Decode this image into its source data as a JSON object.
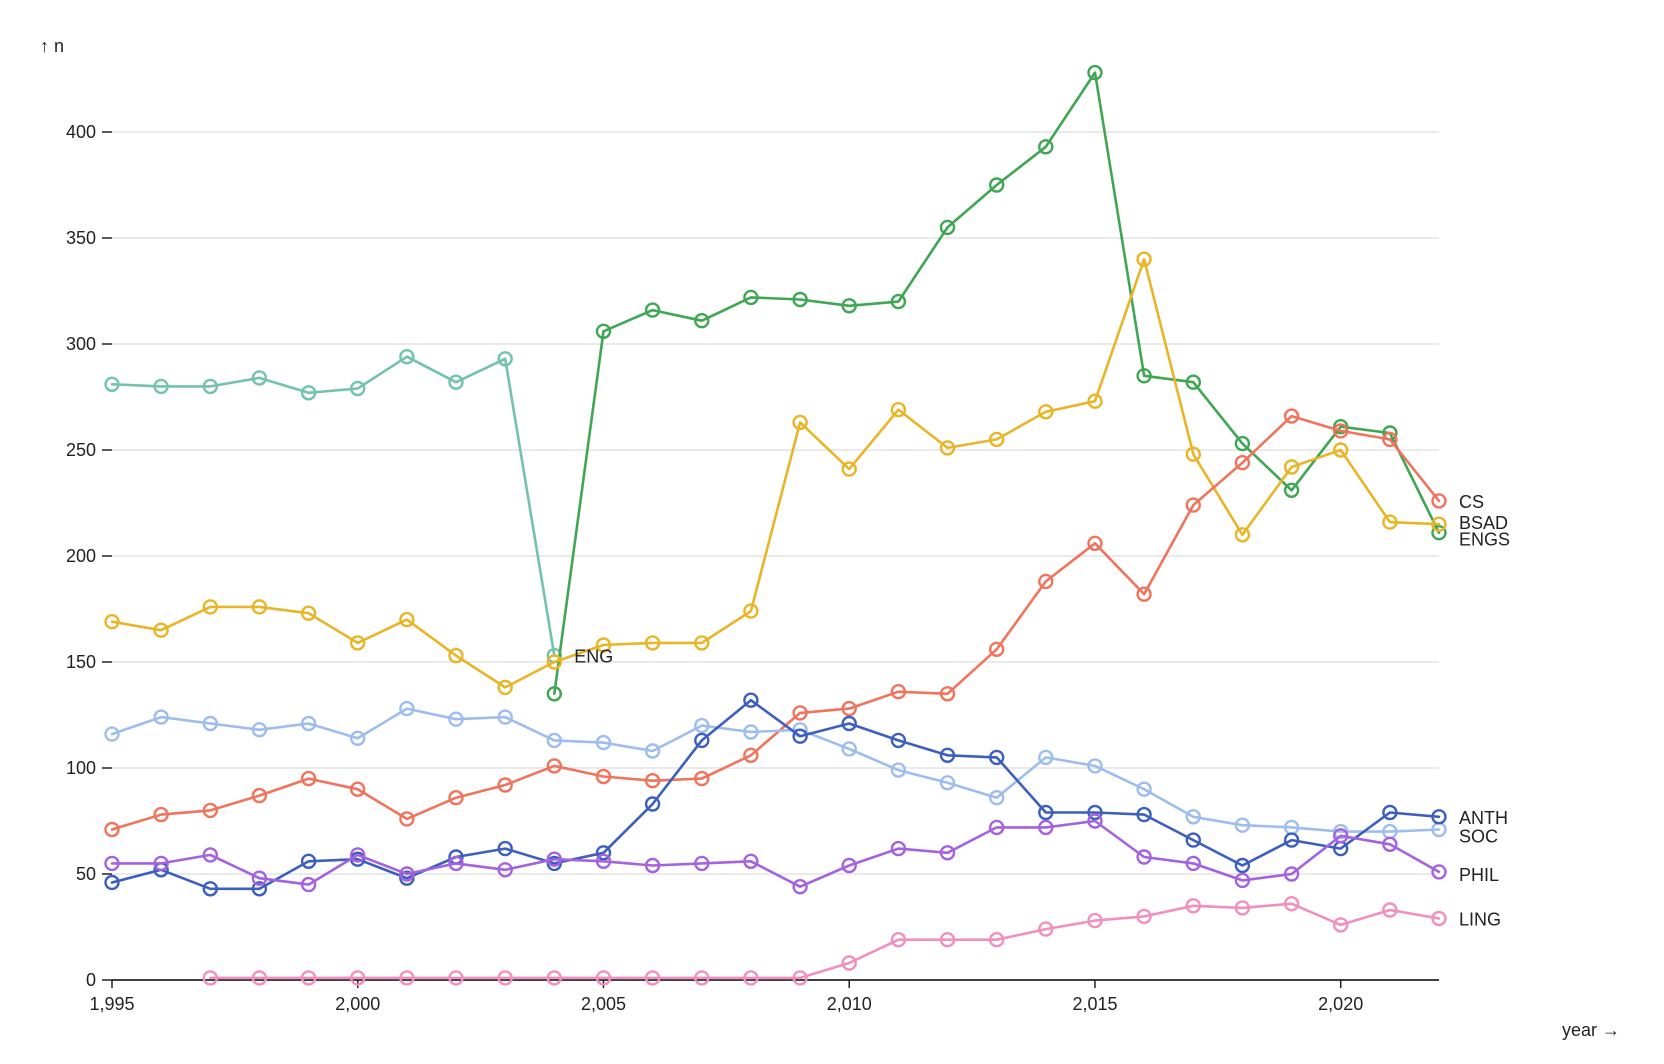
{
  "chart_data": {
    "type": "line",
    "title": "",
    "xlabel": "year →",
    "ylabel": "↑ n",
    "xlim": [
      1995,
      2022
    ],
    "ylim": [
      0,
      430
    ],
    "x_ticks": [
      1995,
      2000,
      2005,
      2010,
      2015,
      2020
    ],
    "x_tick_labels": [
      "1,995",
      "2,000",
      "2,005",
      "2,010",
      "2,015",
      "2,020"
    ],
    "y_ticks": [
      0,
      50,
      100,
      150,
      200,
      250,
      300,
      350,
      400
    ],
    "y_tick_labels": [
      "0",
      "50",
      "100",
      "150",
      "200",
      "250",
      "300",
      "350",
      "400"
    ],
    "grid": true,
    "series": [
      {
        "name": "ENG",
        "label": "ENG",
        "color": "#72c3a8",
        "x": [
          1995,
          1996,
          1997,
          1998,
          1999,
          2000,
          2001,
          2002,
          2003,
          2004
        ],
        "values": [
          281,
          280,
          280,
          284,
          277,
          279,
          294,
          282,
          293,
          153
        ]
      },
      {
        "name": "ENGS",
        "label": "ENGS",
        "color": "#3fa653",
        "x": [
          2004,
          2005,
          2006,
          2007,
          2008,
          2009,
          2010,
          2011,
          2012,
          2013,
          2014,
          2015,
          2016,
          2017,
          2018,
          2019,
          2020,
          2021,
          2022
        ],
        "values": [
          135,
          306,
          316,
          311,
          322,
          321,
          318,
          320,
          355,
          375,
          393,
          428,
          285,
          282,
          253,
          231,
          261,
          258,
          211
        ]
      },
      {
        "name": "BSAD",
        "label": "BSAD",
        "color": "#e9b526",
        "x": [
          1995,
          1996,
          1997,
          1998,
          1999,
          2000,
          2001,
          2002,
          2003,
          2004,
          2005,
          2006,
          2007,
          2008,
          2009,
          2010,
          2011,
          2012,
          2013,
          2014,
          2015,
          2016,
          2017,
          2018,
          2019,
          2020,
          2021,
          2022
        ],
        "values": [
          169,
          165,
          176,
          176,
          173,
          159,
          170,
          153,
          138,
          150,
          158,
          159,
          159,
          174,
          263,
          241,
          269,
          251,
          255,
          268,
          273,
          340,
          248,
          210,
          242,
          250,
          216,
          215
        ]
      },
      {
        "name": "CS",
        "label": "CS",
        "color": "#f1735c",
        "x": [
          1995,
          1996,
          1997,
          1998,
          1999,
          2000,
          2001,
          2002,
          2003,
          2004,
          2005,
          2006,
          2007,
          2008,
          2009,
          2010,
          2011,
          2012,
          2013,
          2014,
          2015,
          2016,
          2017,
          2018,
          2019,
          2020,
          2021,
          2022
        ],
        "values": [
          71,
          78,
          80,
          87,
          95,
          90,
          76,
          86,
          92,
          101,
          96,
          94,
          95,
          106,
          126,
          128,
          136,
          135,
          156,
          188,
          206,
          182,
          224,
          244,
          266,
          259,
          255,
          226
        ]
      },
      {
        "name": "SOC",
        "label": "SOC",
        "color": "#9dbdee",
        "x": [
          1995,
          1996,
          1997,
          1998,
          1999,
          2000,
          2001,
          2002,
          2003,
          2004,
          2005,
          2006,
          2007,
          2008,
          2009,
          2010,
          2011,
          2012,
          2013,
          2014,
          2015,
          2016,
          2017,
          2018,
          2019,
          2020,
          2021,
          2022
        ],
        "values": [
          116,
          124,
          121,
          118,
          121,
          114,
          128,
          123,
          124,
          113,
          112,
          108,
          120,
          117,
          118,
          109,
          99,
          93,
          86,
          105,
          101,
          90,
          77,
          73,
          72,
          70,
          70,
          71
        ]
      },
      {
        "name": "ANTH",
        "label": "ANTH",
        "color": "#3c5fbf",
        "x": [
          1995,
          1996,
          1997,
          1998,
          1999,
          2000,
          2001,
          2002,
          2003,
          2004,
          2005,
          2006,
          2007,
          2008,
          2009,
          2010,
          2011,
          2012,
          2013,
          2014,
          2015,
          2016,
          2017,
          2018,
          2019,
          2020,
          2021,
          2022
        ],
        "values": [
          46,
          52,
          43,
          43,
          56,
          57,
          48,
          58,
          62,
          55,
          60,
          83,
          113,
          132,
          115,
          121,
          113,
          106,
          105,
          79,
          79,
          78,
          66,
          54,
          66,
          62,
          79,
          77
        ]
      },
      {
        "name": "PHIL",
        "label": "PHIL",
        "color": "#a462e0",
        "x": [
          1995,
          1996,
          1997,
          1998,
          1999,
          2000,
          2001,
          2002,
          2003,
          2004,
          2005,
          2006,
          2007,
          2008,
          2009,
          2010,
          2011,
          2012,
          2013,
          2014,
          2015,
          2016,
          2017,
          2018,
          2019,
          2020,
          2021,
          2022
        ],
        "values": [
          55,
          55,
          59,
          48,
          45,
          59,
          50,
          55,
          52,
          57,
          56,
          54,
          55,
          56,
          44,
          54,
          62,
          60,
          72,
          72,
          75,
          58,
          55,
          47,
          50,
          68,
          64,
          51
        ]
      },
      {
        "name": "LING",
        "label": "LING",
        "color": "#f18fbe",
        "x": [
          1997,
          1998,
          1999,
          2000,
          2001,
          2002,
          2003,
          2004,
          2005,
          2006,
          2007,
          2008,
          2009,
          2010,
          2011,
          2012,
          2013,
          2014,
          2015,
          2016,
          2017,
          2018,
          2019,
          2020,
          2021,
          2022
        ],
        "values": [
          1,
          1,
          1,
          1,
          1,
          1,
          1,
          1,
          1,
          1,
          1,
          1,
          1,
          8,
          19,
          19,
          19,
          24,
          28,
          30,
          35,
          34,
          36,
          26,
          33,
          29
        ]
      }
    ]
  }
}
